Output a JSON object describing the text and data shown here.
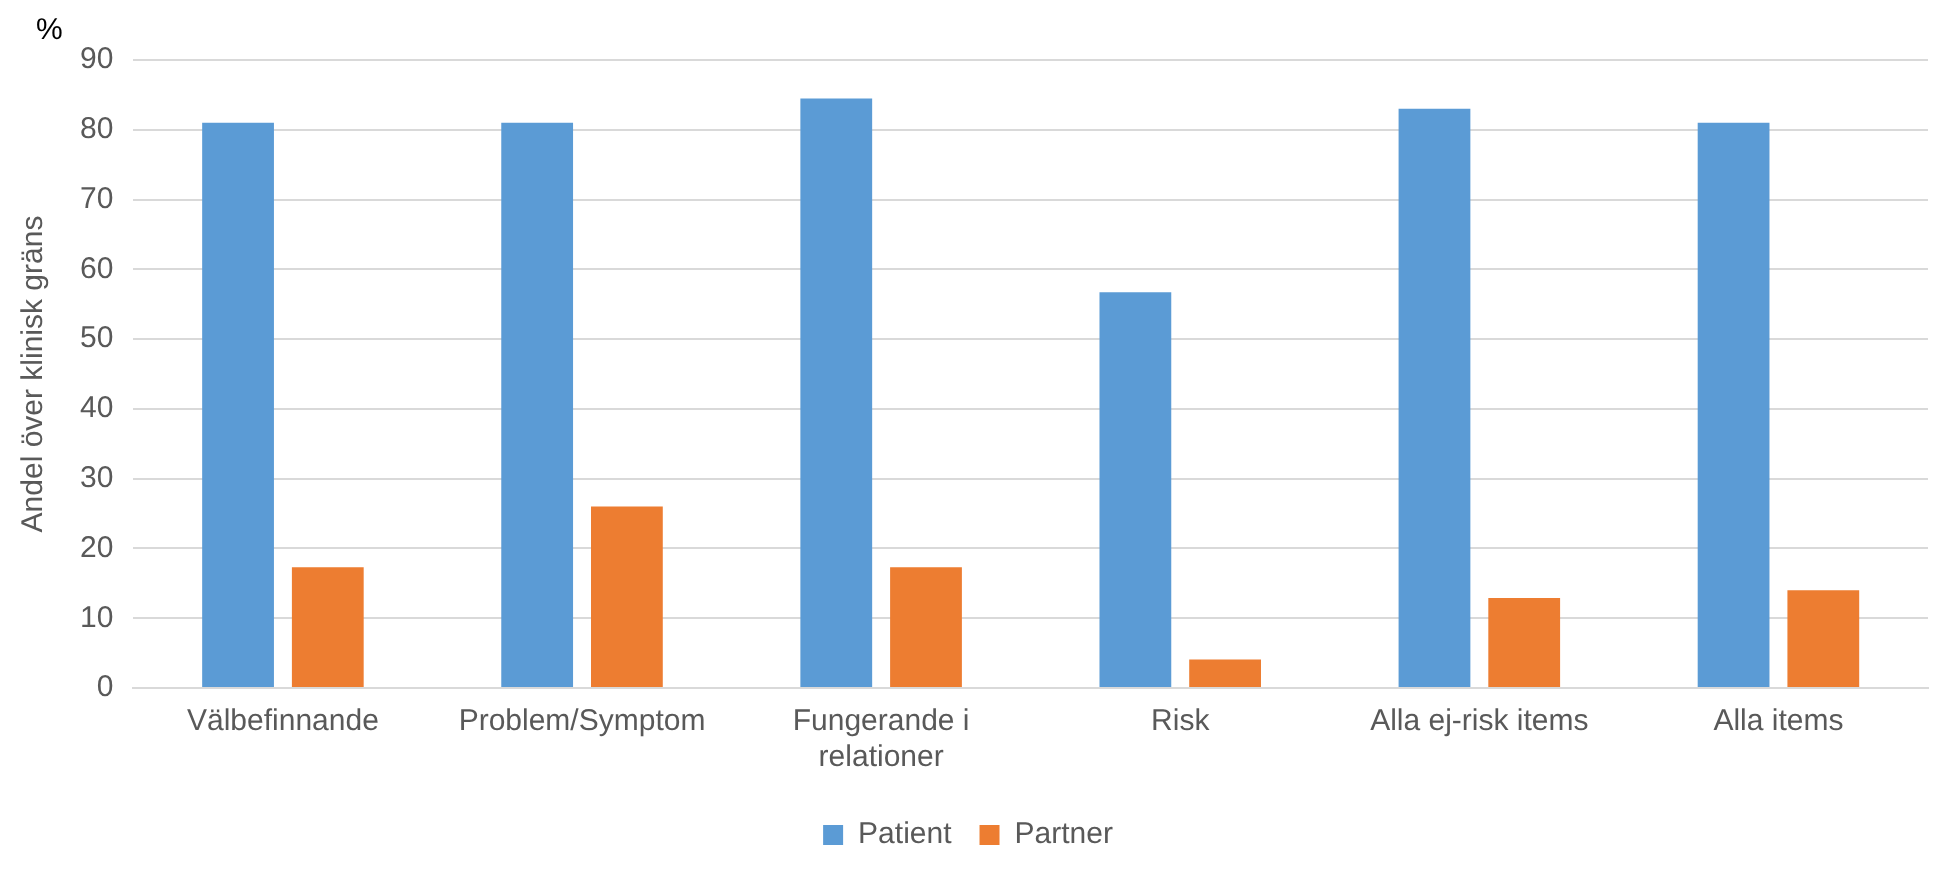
{
  "chart_data": {
    "type": "bar",
    "ylabel": "Andel över klinisk gräns",
    "annotations": [
      "%"
    ],
    "categories": [
      "Välbefinnande",
      "Problem/Symptom",
      "Fungerande i relationer",
      "Risk",
      "Alla ej-risk items",
      "Alla items"
    ],
    "series": [
      {
        "name": "Patient",
        "color": "#5b9bd5",
        "values": [
          81,
          81,
          84.5,
          56.7,
          83,
          81
        ]
      },
      {
        "name": "Partner",
        "color": "#ed7d31",
        "values": [
          17.3,
          26,
          17.3,
          4.1,
          12.9,
          14
        ]
      }
    ],
    "ylim": [
      0,
      90
    ],
    "yticks": [
      0,
      10,
      20,
      30,
      40,
      50,
      60,
      70,
      80,
      90
    ],
    "grid": "y",
    "legend": "bottom"
  }
}
